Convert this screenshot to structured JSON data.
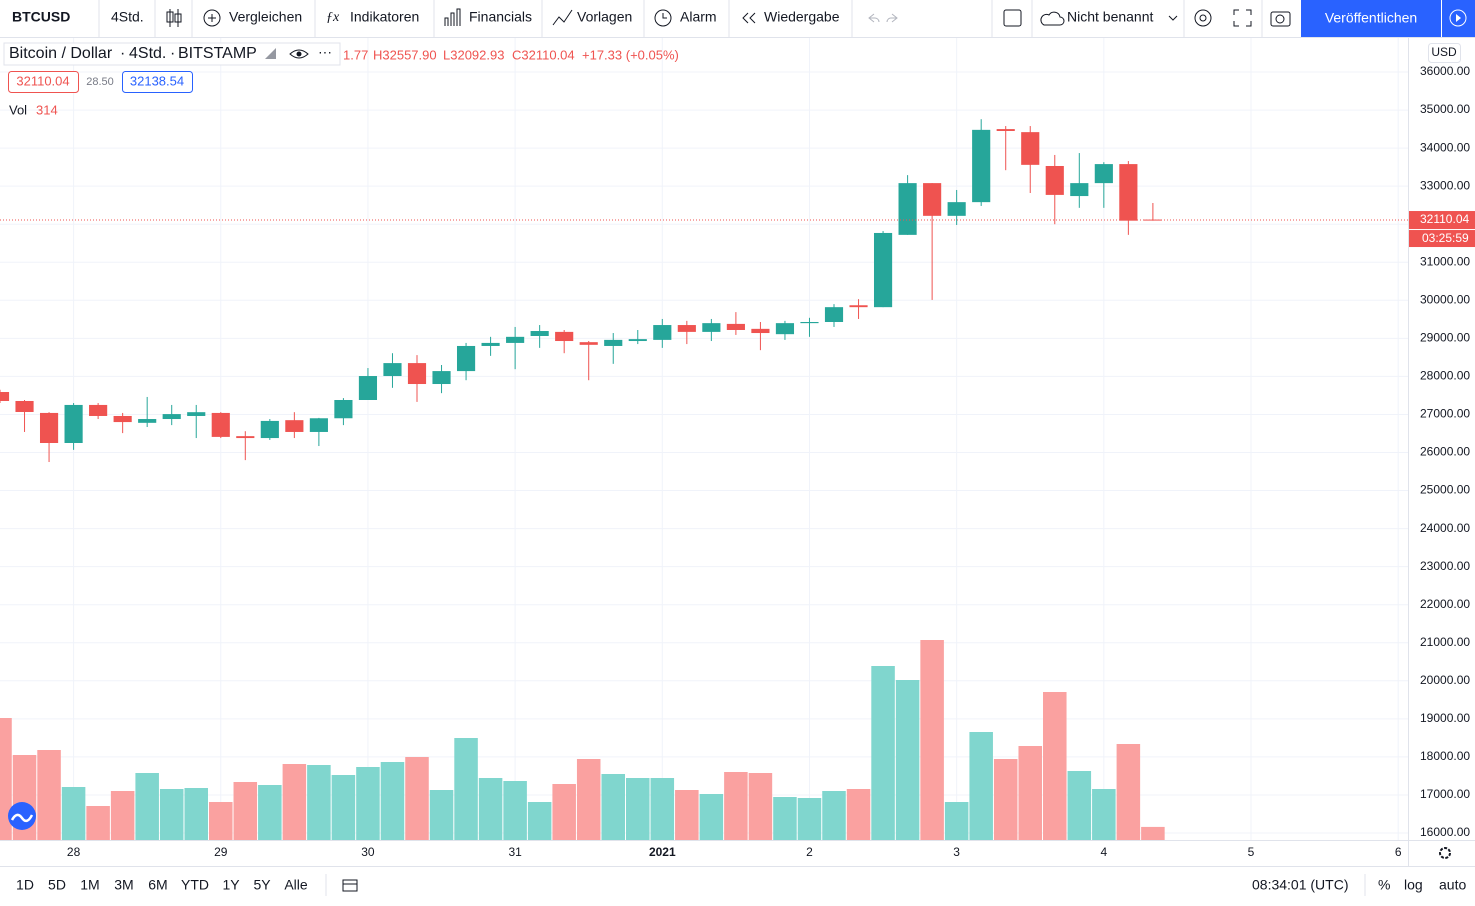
{
  "toolbar": {
    "symbol": "BTCUSD",
    "interval": "4Std.",
    "compare": "Vergleichen",
    "indicators": "Indikatoren",
    "financials": "Financials",
    "templates": "Vorlagen",
    "alert": "Alarm",
    "replay": "Wiedergabe",
    "layout": "Nicht benannt",
    "publish": "Veröffentlichen"
  },
  "legend": {
    "name": "Bitcoin / Dollar",
    "interval": "4Std.",
    "exchange": "BITSTAMP",
    "open_fragment": "1.77",
    "high": "H32557.90",
    "low": "L32092.93",
    "close": "C32110.04",
    "change": "+17.33 (+0.05%)",
    "sell": "32110.04",
    "spread": "28.50",
    "buy": "32138.54",
    "volume_label": "Vol"
  },
  "axis": {
    "currency": "USD",
    "countdown": "03:25:59"
  },
  "bottom": {
    "ranges": [
      "1D",
      "5D",
      "1M",
      "3M",
      "6M",
      "YTD",
      "1Y",
      "5Y",
      "Alle"
    ],
    "time": "08:34:01 (UTC)",
    "percent": "%",
    "log": "log",
    "auto": "auto"
  },
  "chart_data": {
    "type": "candlestick",
    "up_color": "#26a69a",
    "down_color": "#ef5350",
    "volume_up_color": "#80d6ce",
    "volume_down_color": "#faa1a0",
    "grid": true,
    "open": [
      27590,
      27354,
      27040,
      26250,
      27250,
      26960,
      26780,
      26880,
      26960,
      27040,
      26430,
      26380,
      26850,
      26540,
      26900,
      27380,
      28010,
      28350,
      27800,
      28140,
      28800,
      28880,
      29062,
      29170,
      28900,
      28800,
      28930,
      28960,
      29350,
      29170,
      29380,
      29250,
      29110,
      29400,
      29430,
      29870,
      29820,
      31720,
      33080,
      32220,
      32580,
      34500,
      34420,
      33530,
      32740,
      33080,
      33580,
      32121.77
    ],
    "high": [
      27650,
      27380,
      27060,
      27300,
      27300,
      27040,
      27460,
      27250,
      27250,
      27060,
      26560,
      26880,
      27060,
      26910,
      27430,
      28220,
      28610,
      28560,
      28300,
      28880,
      29040,
      29300,
      29350,
      29220,
      28930,
      29140,
      29220,
      29510,
      29460,
      29510,
      29690,
      29430,
      29460,
      29540,
      29900,
      30030,
      31820,
      33290,
      33080,
      32900,
      34760,
      34580,
      34580,
      33820,
      33870,
      33630,
      33660,
      32557.9
    ],
    "low": [
      27300,
      26540,
      25750,
      26070,
      26880,
      26510,
      26670,
      26720,
      26380,
      26380,
      25800,
      26330,
      26380,
      26170,
      26720,
      27380,
      27700,
      27330,
      27560,
      27900,
      28540,
      28190,
      28750,
      28610,
      27900,
      28330,
      28850,
      28750,
      28850,
      28930,
      29090,
      28690,
      28960,
      29040,
      29300,
      29510,
      29820,
      31720,
      30010,
      31980,
      32480,
      33420,
      32820,
      32000,
      32430,
      32430,
      31720,
      32092.93
    ],
    "close": [
      27354,
      27065,
      26250,
      27250,
      26960,
      26800,
      26880,
      27010,
      27060,
      26410,
      26380,
      26830,
      26540,
      26900,
      27380,
      28010,
      28350,
      27800,
      28140,
      28800,
      28880,
      29040,
      29193,
      28930,
      28830,
      28960,
      28980,
      29350,
      29170,
      29400,
      29220,
      29140,
      29400,
      29430,
      29820,
      29820,
      31770,
      33080,
      32220,
      32580,
      34480,
      34450,
      33560,
      32770,
      33080,
      33580,
      32092.71,
      32110.04
    ],
    "volume": [
      2928,
      2040,
      2160,
      1272,
      816,
      1176,
      1608,
      1224,
      1248,
      912,
      1392,
      1320,
      1824,
      1800,
      1560,
      1752,
      1872,
      1992,
      1200,
      2448,
      1488,
      1416,
      912,
      1344,
      1944,
      1584,
      1488,
      1488,
      1200,
      1104,
      1632,
      1608,
      1032,
      1008,
      1176,
      1224,
      4176,
      3840,
      4800,
      912,
      2592,
      1944,
      2256,
      3552,
      1656,
      1224,
      2304,
      314
    ],
    "xlim": [
      0,
      57.4
    ],
    "xticks": [
      {
        "value": 3,
        "label": "28"
      },
      {
        "value": 9,
        "label": "29"
      },
      {
        "value": 15,
        "label": "30"
      },
      {
        "value": 21,
        "label": "31"
      },
      {
        "value": 27,
        "label": "2021"
      },
      {
        "value": 33,
        "label": "2"
      },
      {
        "value": 39,
        "label": "3"
      },
      {
        "value": 45,
        "label": "4"
      },
      {
        "value": 51,
        "label": "5"
      },
      {
        "value": 57,
        "label": "6"
      }
    ],
    "ylim": [
      15816,
      36894
    ],
    "yticks": [
      {
        "value": 16000,
        "label": "16000.00"
      },
      {
        "value": 17000,
        "label": "17000.00"
      },
      {
        "value": 18000,
        "label": "18000.00"
      },
      {
        "value": 19000,
        "label": "19000.00"
      },
      {
        "value": 20000,
        "label": "20000.00"
      },
      {
        "value": 21000,
        "label": "21000.00"
      },
      {
        "value": 22000,
        "label": "22000.00"
      },
      {
        "value": 23000,
        "label": "23000.00"
      },
      {
        "value": 24000,
        "label": "24000.00"
      },
      {
        "value": 25000,
        "label": "25000.00"
      },
      {
        "value": 26000,
        "label": "26000.00"
      },
      {
        "value": 27000,
        "label": "27000.00"
      },
      {
        "value": 28000,
        "label": "28000.00"
      },
      {
        "value": 29000,
        "label": "29000.00"
      },
      {
        "value": 30000,
        "label": "30000.00"
      },
      {
        "value": 31000,
        "label": "31000.00"
      },
      {
        "value": 32000,
        "label": "32000.00"
      },
      {
        "value": 33000,
        "label": "33000.00"
      },
      {
        "value": 34000,
        "label": "34000.00"
      },
      {
        "value": 35000,
        "label": "35000.00"
      },
      {
        "value": 36000,
        "label": "36000.00"
      }
    ]
  }
}
